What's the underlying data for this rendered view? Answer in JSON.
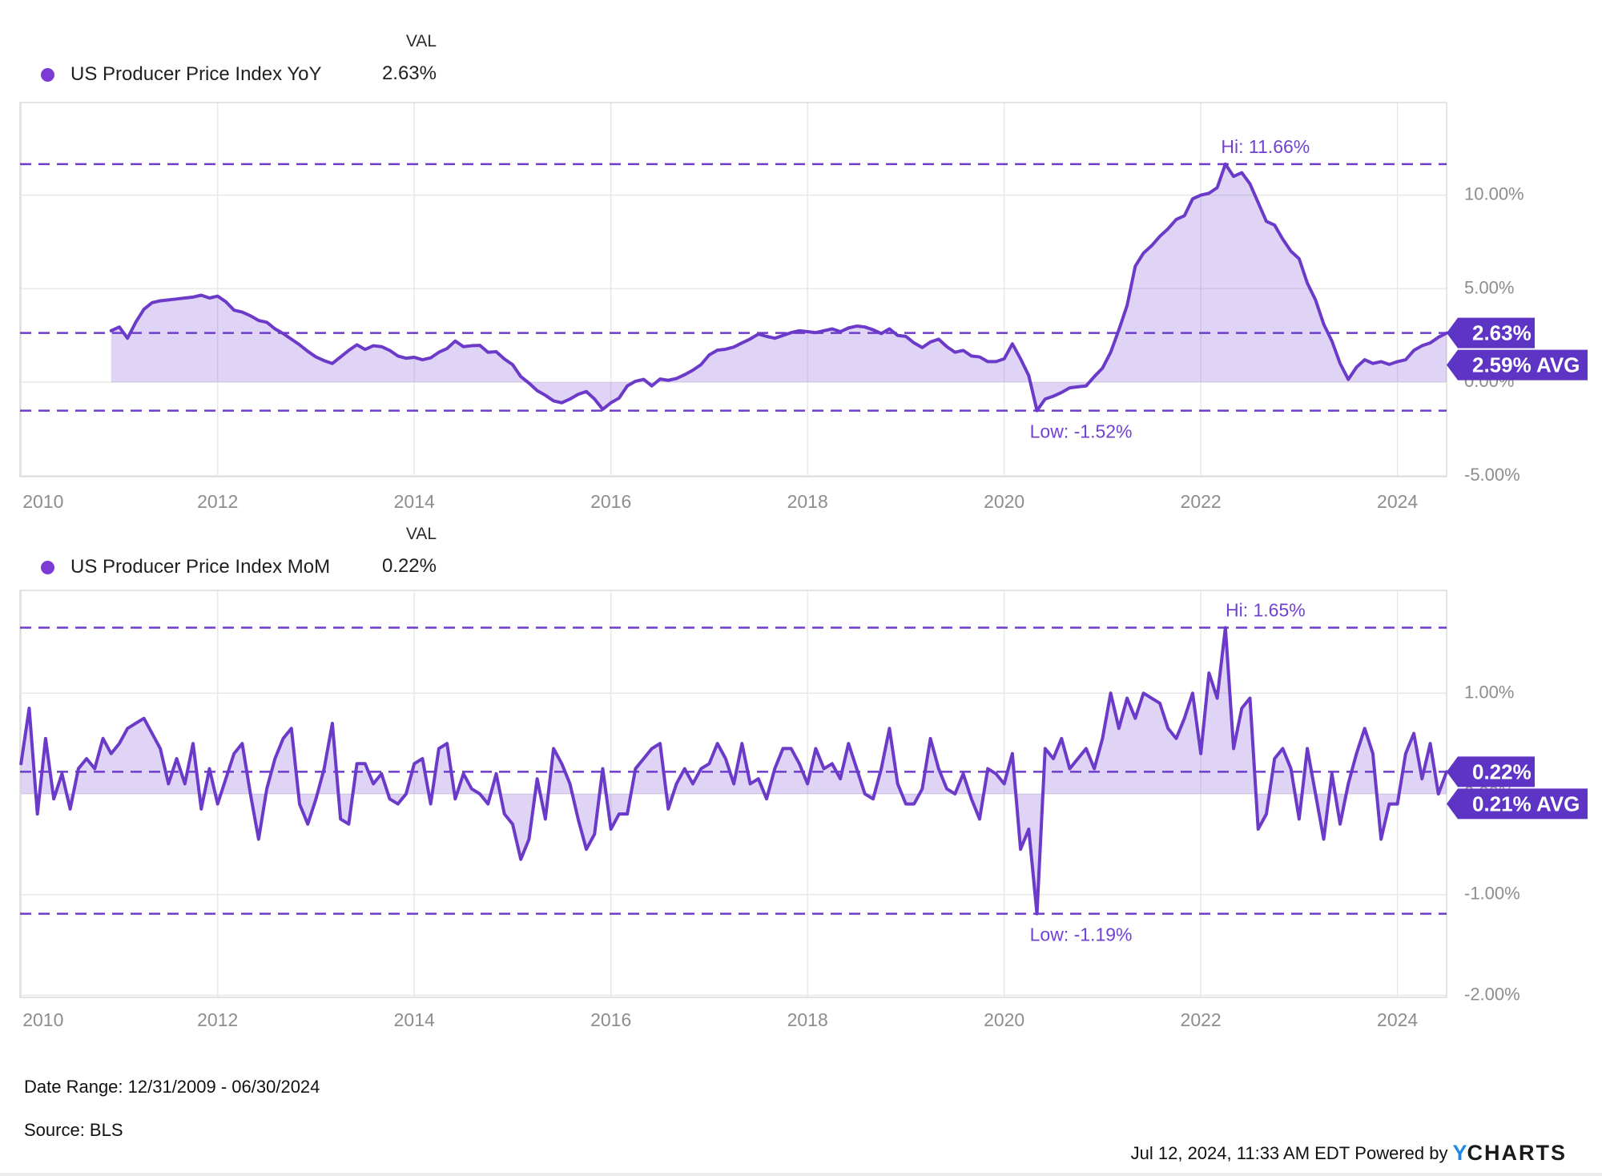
{
  "legend1": {
    "val_header": "VAL",
    "label": "US Producer Price Index YoY",
    "value": "2.63%"
  },
  "legend2": {
    "val_header": "VAL",
    "label": "US Producer Price Index MoM",
    "value": "0.22%"
  },
  "footer": {
    "date_range": "Date Range: 12/31/2009 - 06/30/2024",
    "source": "Source: BLS",
    "timestamp": "Jul 12, 2024, 11:33 AM EDT",
    "powered_by": "Powered by",
    "brand_y": "Y",
    "brand_rest": "CHARTS"
  },
  "colors": {
    "line": "#6b3ac9",
    "fill": "#7a4bd6",
    "dashed": "#6d3ccd",
    "badge": "#5d34c4",
    "hi_low_text": "#7142d1",
    "axis_text": "#8d8d8d",
    "grid": "#e8e8e8",
    "border": "#dcdcdc",
    "legend_dot": "#7b3bd4",
    "brand_blue": "#1e88e5"
  },
  "chart_data": [
    {
      "type": "area",
      "name": "US Producer Price Index YoY",
      "unit": "%",
      "frequency": "monthly",
      "first_point": "2010-11",
      "last_point": "2024-06",
      "hi": 11.66,
      "low": -1.52,
      "latest": 2.63,
      "average": 2.59,
      "hi_label": "Hi: 11.66%",
      "low_label": "Low: -1.52%",
      "badge_value": "2.63%",
      "badge_avg": "2.59% AVG",
      "ylim": [
        -5.05,
        14.95
      ],
      "start_t": 2010.9167,
      "y_ticks": [
        {
          "v": 10,
          "label": "10.00%"
        },
        {
          "v": 5,
          "label": "5.00%"
        },
        {
          "v": 0,
          "label": "0.00%"
        },
        {
          "v": -5,
          "label": "-5.00%"
        }
      ],
      "x_ticks": [
        {
          "v": 2010,
          "label": "2010"
        },
        {
          "v": 2012,
          "label": "2012"
        },
        {
          "v": 2014,
          "label": "2014"
        },
        {
          "v": 2016,
          "label": "2016"
        },
        {
          "v": 2018,
          "label": "2018"
        },
        {
          "v": 2020,
          "label": "2020"
        },
        {
          "v": 2022,
          "label": "2022"
        },
        {
          "v": 2024,
          "label": "2024"
        }
      ],
      "values": [
        2.75,
        2.95,
        2.35,
        3.2,
        3.9,
        4.25,
        4.35,
        4.4,
        4.45,
        4.5,
        4.55,
        4.65,
        4.5,
        4.6,
        4.3,
        3.85,
        3.75,
        3.55,
        3.3,
        3.2,
        2.85,
        2.6,
        2.3,
        2.0,
        1.65,
        1.35,
        1.15,
        1.0,
        1.35,
        1.7,
        2.0,
        1.75,
        1.95,
        1.9,
        1.7,
        1.4,
        1.28,
        1.33,
        1.2,
        1.3,
        1.6,
        1.8,
        2.2,
        1.9,
        1.95,
        1.97,
        1.6,
        1.63,
        1.24,
        0.94,
        0.3,
        -0.05,
        -0.45,
        -0.7,
        -1.0,
        -1.1,
        -0.9,
        -0.65,
        -0.5,
        -0.9,
        -1.45,
        -1.1,
        -0.85,
        -0.2,
        0.05,
        0.15,
        -0.2,
        0.17,
        0.1,
        0.2,
        0.4,
        0.64,
        0.94,
        1.46,
        1.71,
        1.76,
        1.88,
        2.1,
        2.31,
        2.57,
        2.45,
        2.35,
        2.5,
        2.65,
        2.75,
        2.7,
        2.65,
        2.75,
        2.85,
        2.7,
        2.9,
        3.0,
        2.95,
        2.8,
        2.6,
        2.85,
        2.5,
        2.45,
        2.1,
        1.85,
        2.15,
        2.3,
        1.9,
        1.6,
        1.7,
        1.4,
        1.35,
        1.1,
        1.1,
        1.25,
        2.05,
        1.25,
        0.35,
        -1.52,
        -0.9,
        -0.75,
        -0.55,
        -0.3,
        -0.25,
        -0.2,
        0.3,
        0.75,
        1.6,
        2.8,
        4.1,
        6.2,
        6.9,
        7.3,
        7.8,
        8.2,
        8.7,
        8.9,
        9.8,
        10.0,
        10.1,
        10.4,
        11.66,
        11.0,
        11.2,
        10.6,
        9.6,
        8.6,
        8.4,
        7.65,
        7.0,
        6.6,
        5.3,
        4.4,
        3.1,
        2.2,
        1.0,
        0.15,
        0.8,
        1.2,
        1.0,
        1.1,
        0.95,
        1.1,
        1.2,
        1.7,
        1.95,
        2.1,
        2.4,
        2.63
      ]
    },
    {
      "type": "area",
      "name": "US Producer Price Index MoM",
      "unit": "%",
      "frequency": "monthly",
      "first_point": "2009-12",
      "last_point": "2024-06",
      "hi": 1.65,
      "low": -1.19,
      "latest": 0.22,
      "average": 0.21,
      "hi_label": "Hi: 1.65%",
      "low_label": "Low: -1.19%",
      "badge_value": "0.22%",
      "badge_avg": "0.21% AVG",
      "ylim": [
        -2.02,
        2.02
      ],
      "start_t": 2010.0,
      "y_ticks": [
        {
          "v": 1,
          "label": "1.00%"
        },
        {
          "v": 0,
          "label": "0.00%"
        },
        {
          "v": -1,
          "label": "-1.00%"
        },
        {
          "v": -2,
          "label": "-2.00%"
        }
      ],
      "x_ticks": [
        {
          "v": 2010,
          "label": "2010"
        },
        {
          "v": 2012,
          "label": "2012"
        },
        {
          "v": 2014,
          "label": "2014"
        },
        {
          "v": 2016,
          "label": "2016"
        },
        {
          "v": 2018,
          "label": "2018"
        },
        {
          "v": 2020,
          "label": "2020"
        },
        {
          "v": 2022,
          "label": "2022"
        },
        {
          "v": 2024,
          "label": "2024"
        }
      ],
      "values": [
        0.3,
        0.85,
        -0.2,
        0.55,
        -0.05,
        0.2,
        -0.15,
        0.25,
        0.35,
        0.25,
        0.55,
        0.4,
        0.5,
        0.65,
        0.7,
        0.75,
        0.6,
        0.45,
        0.1,
        0.35,
        0.1,
        0.5,
        -0.15,
        0.25,
        -0.1,
        0.15,
        0.4,
        0.5,
        0.0,
        -0.45,
        0.05,
        0.35,
        0.55,
        0.65,
        -0.1,
        -0.3,
        -0.05,
        0.25,
        0.7,
        -0.25,
        -0.3,
        0.3,
        0.3,
        0.1,
        0.2,
        -0.05,
        -0.1,
        0.0,
        0.3,
        0.35,
        -0.1,
        0.45,
        0.5,
        -0.05,
        0.2,
        0.05,
        0.0,
        -0.1,
        0.2,
        -0.2,
        -0.3,
        -0.65,
        -0.45,
        0.15,
        -0.25,
        0.45,
        0.3,
        0.1,
        -0.25,
        -0.55,
        -0.4,
        0.25,
        -0.35,
        -0.2,
        -0.2,
        0.25,
        0.35,
        0.45,
        0.5,
        -0.15,
        0.1,
        0.25,
        0.1,
        0.25,
        0.3,
        0.5,
        0.35,
        0.1,
        0.5,
        0.1,
        0.15,
        -0.05,
        0.25,
        0.45,
        0.45,
        0.3,
        0.1,
        0.45,
        0.25,
        0.3,
        0.15,
        0.5,
        0.25,
        0.0,
        -0.05,
        0.25,
        0.65,
        0.1,
        -0.1,
        -0.1,
        0.05,
        0.55,
        0.25,
        0.05,
        0.0,
        0.2,
        -0.05,
        -0.25,
        0.25,
        0.2,
        0.1,
        0.4,
        -0.55,
        -0.35,
        -1.19,
        0.45,
        0.35,
        0.55,
        0.25,
        0.35,
        0.45,
        0.25,
        0.55,
        1.0,
        0.65,
        0.95,
        0.75,
        1.0,
        0.95,
        0.9,
        0.65,
        0.55,
        0.75,
        1.0,
        0.4,
        1.2,
        0.95,
        1.65,
        0.45,
        0.85,
        0.95,
        -0.35,
        -0.2,
        0.35,
        0.45,
        0.25,
        -0.25,
        0.45,
        0.0,
        -0.45,
        0.2,
        -0.3,
        0.1,
        0.4,
        0.65,
        0.4,
        -0.45,
        -0.1,
        -0.1,
        0.4,
        0.6,
        0.15,
        0.5,
        0.0,
        0.22
      ]
    }
  ]
}
